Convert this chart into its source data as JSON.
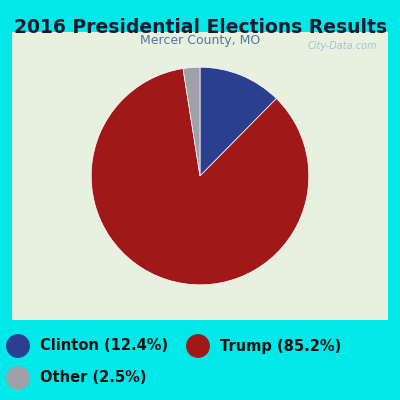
{
  "title": "2016 Presidential Elections Results",
  "subtitle": "Mercer County, MO",
  "title_color": "#1a1a2e",
  "title_fontsize": 13.5,
  "subtitle_fontsize": 9,
  "subtitle_color": "#557799",
  "slices": [
    12.4,
    85.2,
    2.5
  ],
  "labels": [
    "Clinton (12.4%)",
    "Trump (85.2%)",
    "Other (2.5%)"
  ],
  "colors": [
    "#2a3f8f",
    "#a01818",
    "#a0a0a8"
  ],
  "startangle": 90,
  "background_outer": "#00e8e8",
  "background_inner": "#e8f0e0",
  "watermark": "City-Data.com",
  "legend_fontsize": 10.5
}
